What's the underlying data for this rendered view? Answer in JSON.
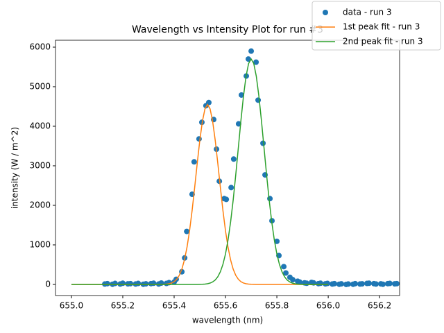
{
  "chart_data": {
    "type": "scatter",
    "title": "Wavelength vs Intensity Plot for run #3",
    "xlabel": "wavelength (nm)",
    "ylabel": "intensity (W / m^2)",
    "xlim": [
      654.938,
      656.278
    ],
    "ylim": [
      -281,
      6175
    ],
    "xticks": [
      {
        "value": 655.0,
        "label": "655.0"
      },
      655.2,
      655.4,
      655.6,
      655.8,
      {
        "value": 656.0,
        "label": "656.0"
      },
      656.2
    ],
    "yticks": [
      0,
      1000,
      2000,
      3000,
      4000,
      5000,
      6000
    ],
    "grid": false,
    "legend": "upper right",
    "series": [
      {
        "name": "data - run 3",
        "type": "scatter",
        "color": "#1f77b4",
        "x": [
          655.13,
          655.14,
          655.16,
          655.17,
          655.19,
          655.2,
          655.22,
          655.23,
          655.25,
          655.26,
          655.28,
          655.29,
          655.31,
          655.32,
          655.34,
          655.35,
          655.37,
          655.38,
          655.4,
          655.408,
          655.43,
          655.441,
          655.449,
          655.47,
          655.478,
          655.497,
          655.508,
          655.524,
          655.535,
          655.554,
          655.565,
          655.576,
          655.595,
          655.603,
          655.622,
          655.632,
          655.651,
          655.662,
          655.681,
          655.689,
          655.7,
          655.719,
          655.727,
          655.746,
          655.754,
          655.773,
          655.781,
          655.8,
          655.808,
          655.827,
          655.835,
          655.851,
          655.862,
          655.881,
          655.889,
          655.908,
          655.916,
          655.935,
          655.943,
          655.962,
          655.97,
          655.989,
          655.997,
          656.016,
          656.024,
          656.043,
          656.051,
          656.07,
          656.078,
          656.097,
          656.105,
          656.124,
          656.132,
          656.151,
          656.159,
          656.178,
          656.186,
          656.205,
          656.213,
          656.232,
          656.24,
          656.259,
          656.267
        ],
        "values": [
          10,
          20,
          5,
          25,
          10,
          30,
          15,
          20,
          10,
          25,
          5,
          15,
          20,
          30,
          10,
          35,
          25,
          45,
          60,
          130,
          320,
          670,
          1340,
          2280,
          3100,
          3680,
          4100,
          4520,
          4600,
          4170,
          3420,
          2610,
          2170,
          2150,
          2450,
          3170,
          4060,
          4790,
          5270,
          5700,
          5900,
          5620,
          4660,
          3570,
          2770,
          2170,
          1610,
          1090,
          730,
          450,
          290,
          180,
          120,
          80,
          60,
          40,
          30,
          50,
          40,
          20,
          30,
          15,
          25,
          10,
          20,
          5,
          15,
          0,
          10,
          5,
          20,
          10,
          15,
          25,
          30,
          20,
          10,
          15,
          5,
          20,
          25,
          15,
          20
        ]
      },
      {
        "name": "1st peak fit - run 3",
        "type": "line",
        "color": "#ff7f0e",
        "x": [
          655.0,
          655.34,
          655.35,
          655.36,
          655.37,
          655.38,
          655.39,
          655.4,
          655.41,
          655.42,
          655.43,
          655.44,
          655.45,
          655.46,
          655.47,
          655.48,
          655.49,
          655.5,
          655.51,
          655.52,
          655.53,
          655.54,
          655.55,
          655.56,
          655.57,
          655.58,
          655.59,
          655.6,
          655.61,
          655.62,
          655.63,
          655.64,
          655.65,
          655.66,
          655.67,
          655.68,
          655.69,
          655.7,
          655.71,
          655.72,
          656.0
        ],
        "values": [
          0,
          0,
          2,
          4,
          8,
          18,
          36,
          70,
          130,
          229,
          385,
          616,
          937,
          1356,
          1870,
          2454,
          3066,
          3644,
          4122,
          4439,
          4550,
          4439,
          4122,
          3644,
          3066,
          2454,
          1870,
          1356,
          937,
          616,
          385,
          229,
          130,
          70,
          36,
          18,
          8,
          4,
          2,
          0,
          0
        ]
      },
      {
        "name": "2nd peak fit - run 3",
        "type": "line",
        "color": "#2ca02c",
        "x": [
          655.0,
          655.49,
          655.5,
          655.51,
          655.52,
          655.53,
          655.54,
          655.55,
          655.56,
          655.57,
          655.58,
          655.59,
          655.6,
          655.61,
          655.62,
          655.63,
          655.64,
          655.65,
          655.66,
          655.67,
          655.68,
          655.69,
          655.7,
          655.71,
          655.72,
          655.73,
          655.74,
          655.75,
          655.76,
          655.77,
          655.78,
          655.79,
          655.8,
          655.81,
          655.82,
          655.83,
          655.84,
          655.85,
          655.86,
          655.87,
          655.88,
          655.89,
          655.9,
          655.91,
          656.0
        ],
        "values": [
          0,
          0,
          2,
          4,
          9,
          18,
          34,
          63,
          113,
          194,
          320,
          507,
          771,
          1128,
          1585,
          2138,
          2774,
          3457,
          4140,
          4761,
          5262,
          5587,
          5700,
          5587,
          5262,
          4761,
          4140,
          3457,
          2774,
          2138,
          1585,
          1128,
          771,
          507,
          320,
          194,
          113,
          63,
          34,
          18,
          9,
          4,
          2,
          0,
          0
        ]
      }
    ]
  }
}
